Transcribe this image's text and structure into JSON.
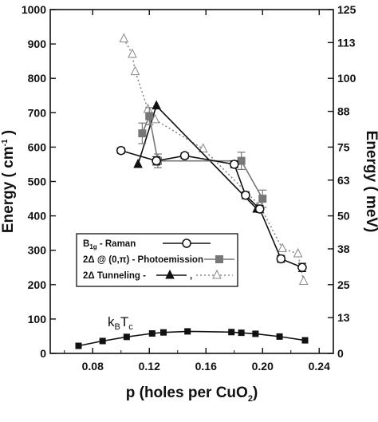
{
  "chart_data": {
    "type": "scatter",
    "x_axis": {
      "label": "p (holes per CuO",
      "label_sub": "2",
      "label_end": ")",
      "range": [
        0.05,
        0.25
      ],
      "ticks": [
        0.08,
        0.12,
        0.16,
        0.2,
        0.24
      ],
      "tick_labels": [
        "0.08",
        "0.12",
        "0.16",
        "0.20",
        "0.24"
      ]
    },
    "y_axis_left": {
      "label": "Energy ( cm",
      "label_sup": "-1",
      "label_end": ")",
      "range": [
        0,
        1000
      ],
      "ticks": [
        0,
        100,
        200,
        300,
        400,
        500,
        600,
        700,
        800,
        900,
        1000
      ],
      "tick_labels": [
        "0",
        "100",
        "200",
        "300",
        "400",
        "500",
        "600",
        "700",
        "800",
        "900",
        "1000"
      ]
    },
    "y_axis_right": {
      "label": "Energy ( meV)",
      "range": [
        0,
        125
      ],
      "ticks": [
        0,
        13,
        25,
        38,
        50,
        63,
        75,
        88,
        100,
        113,
        125
      ],
      "tick_labels": [
        "0",
        "13",
        "25",
        "38",
        "50",
        "63",
        "75",
        "88",
        "100",
        "113",
        "125"
      ]
    },
    "series": [
      {
        "name": "B1g - Raman",
        "marker": "open-circle",
        "line": "solid",
        "color": "#111111",
        "x": [
          0.1,
          0.125,
          0.145,
          0.18,
          0.188,
          0.198,
          0.213,
          0.228
        ],
        "y": [
          590,
          560,
          575,
          550,
          460,
          420,
          275,
          250
        ],
        "yerr": [
          8,
          12,
          8,
          10,
          10,
          10,
          10,
          12
        ]
      },
      {
        "name": "2Δ @ (0,π) - Photoemission",
        "marker": "filled-square",
        "line": "solid",
        "color": "#777777",
        "x": [
          0.115,
          0.12,
          0.126,
          0.185,
          0.2
        ],
        "y": [
          640,
          690,
          560,
          560,
          450
        ],
        "yerr": [
          30,
          25,
          20,
          25,
          25
        ]
      },
      {
        "name": "2Δ Tunneling (filled)",
        "marker": "filled-triangle",
        "line": "solid",
        "color": "#111111",
        "x": [
          0.112,
          0.125,
          0.196
        ],
        "y": [
          550,
          720,
          420
        ]
      },
      {
        "name": "2Δ Tunneling (open)",
        "marker": "open-triangle",
        "line": "dotted",
        "color": "#888888",
        "x": [
          0.102,
          0.108,
          0.11,
          0.119,
          0.124,
          0.158,
          0.198,
          0.214,
          0.225,
          0.229
        ],
        "y": [
          915,
          870,
          820,
          710,
          680,
          595,
          430,
          305,
          290,
          210
        ]
      },
      {
        "name": "kBTc",
        "marker": "filled-square",
        "line": "solid",
        "color": "#111111",
        "x": [
          0.07,
          0.087,
          0.104,
          0.122,
          0.13,
          0.147,
          0.178,
          0.185,
          0.195,
          0.212,
          0.23
        ],
        "y": [
          22,
          36,
          48,
          58,
          61,
          64,
          62,
          60,
          57,
          49,
          38
        ]
      }
    ],
    "legend": {
      "placement": "lower-left",
      "entries": [
        {
          "label": "B",
          "sub": "1g",
          "rest": " - Raman"
        },
        {
          "label": "2Δ @ (0,π) - Photoemission"
        },
        {
          "label": "2Δ  Tunneling -"
        }
      ],
      "separator": ","
    },
    "annotations": [
      {
        "text": "k",
        "sub1": "B",
        "text2": "T",
        "sub2": "c"
      }
    ]
  }
}
